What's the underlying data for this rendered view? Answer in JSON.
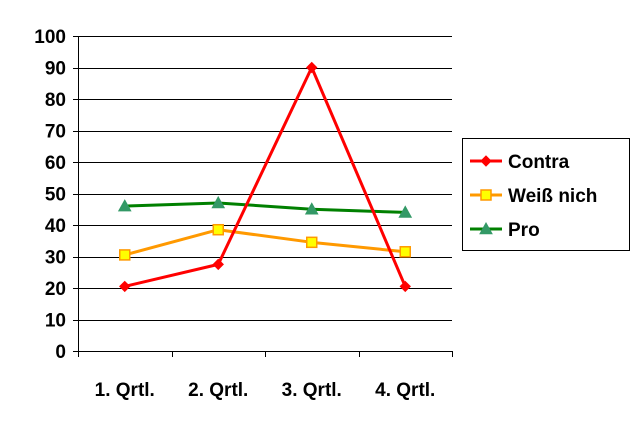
{
  "chart_data": {
    "type": "line",
    "title": "",
    "xlabel": "",
    "ylabel": "",
    "categories": [
      "1. Qrtl.",
      "2. Qrtl.",
      "3. Qrtl.",
      "4. Qrtl."
    ],
    "ylim": [
      0,
      100
    ],
    "yticks": [
      "0",
      "10",
      "20",
      "30",
      "40",
      "50",
      "60",
      "70",
      "80",
      "90",
      "100"
    ],
    "grid": true,
    "legend_position": "right",
    "series": [
      {
        "name": "Contra",
        "values": [
          20.5,
          27.5,
          90,
          20.5
        ],
        "color": "#ff0000",
        "marker": "diamond"
      },
      {
        "name": "Weiß nich",
        "values": [
          30.5,
          38.5,
          34.5,
          31.5
        ],
        "color": "#ff9900",
        "marker": "square",
        "marker_fill": "#ffff00"
      },
      {
        "name": "Pro",
        "values": [
          46,
          47,
          45,
          44
        ],
        "color": "#008000",
        "marker": "triangle",
        "marker_fill": "#339966"
      }
    ]
  }
}
